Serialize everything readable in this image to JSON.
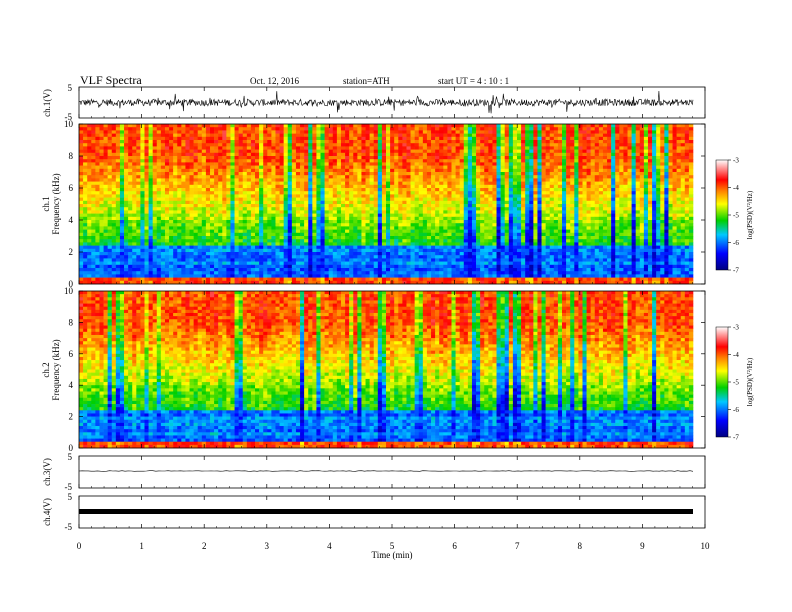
{
  "header": {
    "title": "VLF Spectra",
    "date": "Oct. 12, 2016",
    "station": "station=ATH",
    "start": "start  UT  =   4  : 10 : 1"
  },
  "chart_data": [
    {
      "type": "line",
      "id": "ch1-waveform",
      "ylabel": "ch.1(V)",
      "ylim": [
        -5,
        5
      ],
      "yticks": [
        "5",
        "-5"
      ],
      "xlim": [
        0,
        10
      ],
      "description_values": {
        "baseline_v": 0,
        "amplitude_v": 2
      }
    },
    {
      "type": "heatmap",
      "id": "ch1-spectrogram",
      "channel_label": "ch.1",
      "ylabel": "Frequency  (kHz)",
      "ylim": [
        0,
        10
      ],
      "yticks": [
        "0",
        "2",
        "4",
        "6",
        "8",
        "10"
      ],
      "xlim": [
        0,
        9.8
      ],
      "colorbar": {
        "label": "log(PSD)(V²/Hz)",
        "range": [
          -7,
          -3
        ],
        "ticks": [
          "-3",
          "-4",
          "-5",
          "-6",
          "-7"
        ]
      }
    },
    {
      "type": "heatmap",
      "id": "ch2-spectrogram",
      "channel_label": "ch.2",
      "ylabel": "Frequency  (kHz)",
      "ylim": [
        0,
        10
      ],
      "yticks": [
        "0",
        "2",
        "4",
        "6",
        "8",
        "10"
      ],
      "xlim": [
        0,
        9.8
      ],
      "colorbar": {
        "label": "log(PSD)(V²/Hz)",
        "range": [
          -7,
          -3
        ],
        "ticks": [
          "-3",
          "-4",
          "-5",
          "-6",
          "-7"
        ]
      }
    },
    {
      "type": "line",
      "id": "ch3-waveform",
      "ylabel": "ch.3(V)",
      "ylim": [
        -5,
        5
      ],
      "yticks": [
        "5",
        "-5"
      ],
      "xlim": [
        0,
        10
      ],
      "description_values": {
        "baseline_v": 0,
        "amplitude_v": 0
      }
    },
    {
      "type": "line",
      "id": "ch4-waveform",
      "ylabel": "ch.4(V)",
      "ylim": [
        -5,
        5
      ],
      "yticks": [
        "5",
        "-5"
      ],
      "xlim": [
        0,
        10
      ],
      "description_values": {
        "baseline_v": 0,
        "amplitude_v": 0.3
      }
    }
  ],
  "xaxis": {
    "label": "Time  (min)",
    "ticks": [
      "0",
      "1",
      "2",
      "3",
      "4",
      "5",
      "6",
      "7",
      "8",
      "9",
      "10"
    ],
    "range": [
      0,
      10
    ]
  },
  "colors": {
    "low": "#000080",
    "blue": "#0000ff",
    "cyan": "#00c8ff",
    "green": "#00d000",
    "yellow": "#ffff00",
    "orange": "#ff8000",
    "red": "#ff0000",
    "pink": "#ffc8c8"
  }
}
